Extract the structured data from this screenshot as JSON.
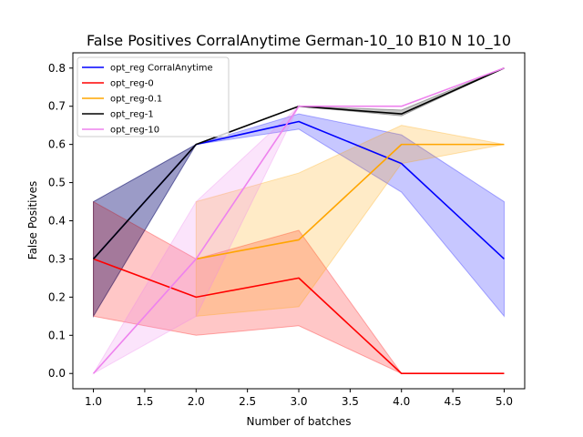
{
  "chart_data": {
    "type": "line",
    "title": "False Positives CorralAnytime German-10_10 B10 N 10_10",
    "xlabel": "Number of batches",
    "ylabel": "False Positives",
    "xlim": [
      0.8,
      5.2
    ],
    "ylim": [
      -0.04,
      0.84
    ],
    "xticks": [
      1.0,
      1.5,
      2.0,
      2.5,
      3.0,
      3.5,
      4.0,
      4.5,
      5.0
    ],
    "xtick_labels": [
      "1.0",
      "1.5",
      "2.0",
      "2.5",
      "3.0",
      "3.5",
      "4.0",
      "4.5",
      "5.0"
    ],
    "yticks": [
      0.0,
      0.1,
      0.2,
      0.3,
      0.4,
      0.5,
      0.6,
      0.7,
      0.8
    ],
    "ytick_labels": [
      "0.0",
      "0.1",
      "0.2",
      "0.3",
      "0.4",
      "0.5",
      "0.6",
      "0.7",
      "0.8"
    ],
    "grid": false,
    "legend_position": "top-left",
    "x": [
      1,
      2,
      3,
      4,
      5
    ],
    "series": [
      {
        "name": "opt_reg CorralAnytime",
        "color": "#0000ff",
        "values": [
          0.3,
          0.6,
          0.66,
          0.55,
          0.3
        ],
        "lower": [
          0.15,
          0.6,
          0.64,
          0.475,
          0.15
        ],
        "upper": [
          0.45,
          0.6,
          0.68,
          0.625,
          0.45
        ]
      },
      {
        "name": "opt_reg-0",
        "color": "#ff0000",
        "values": [
          0.3,
          0.2,
          0.25,
          0.0,
          0.0
        ],
        "lower": [
          0.15,
          0.1,
          0.125,
          0.0,
          0.0
        ],
        "upper": [
          0.45,
          0.3,
          0.375,
          0.0,
          0.0
        ]
      },
      {
        "name": "opt_reg-0.1",
        "color": "#ffa500",
        "values": [
          null,
          0.3,
          0.35,
          0.6,
          0.6
        ],
        "lower": [
          null,
          0.15,
          0.175,
          0.55,
          0.6
        ],
        "upper": [
          null,
          0.45,
          0.525,
          0.65,
          0.6
        ]
      },
      {
        "name": "opt_reg-1",
        "color": "#000000",
        "values": [
          0.3,
          0.6,
          0.7,
          0.68,
          0.8
        ],
        "lower": [
          0.15,
          0.6,
          0.7,
          0.675,
          0.8
        ],
        "upper": [
          0.45,
          0.6,
          0.7,
          0.69,
          0.8
        ]
      },
      {
        "name": "opt_reg-10",
        "color": "#ee82ee",
        "values": [
          0.0,
          0.3,
          0.7,
          0.7,
          0.8
        ],
        "lower": [
          0.0,
          0.15,
          0.7,
          0.7,
          0.8
        ],
        "upper": [
          0.0,
          0.45,
          0.7,
          0.7,
          0.8
        ]
      }
    ]
  }
}
